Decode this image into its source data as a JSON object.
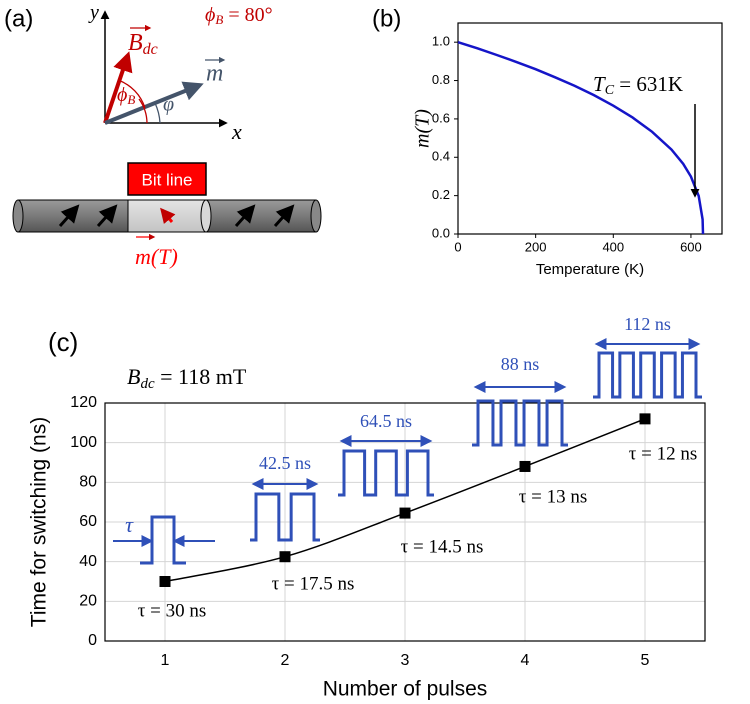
{
  "diagram": {
    "label": "(a)",
    "axis_y": "y",
    "axis_x": "x",
    "field_symbol": "B",
    "field_subscript": "dc",
    "angle_symbol": "ϕ",
    "angle_subscript": "B",
    "angle_value": " = 80°",
    "magnetization_symbol": "m",
    "magnetization_angle": "φ",
    "bit_line": "Bit line",
    "temperature_argument": "(T)"
  },
  "chart_data": [
    {
      "type": "line",
      "label": "(b)",
      "x_label": "Temperature (K)",
      "y_label": "m(T)",
      "x": [
        0,
        50,
        100,
        150,
        200,
        250,
        300,
        350,
        400,
        450,
        500,
        550,
        580,
        600,
        620,
        630,
        631
      ],
      "values": [
        1.0,
        0.968,
        0.933,
        0.897,
        0.859,
        0.817,
        0.773,
        0.724,
        0.669,
        0.607,
        0.533,
        0.44,
        0.366,
        0.3,
        0.198,
        0.076,
        0
      ],
      "color": "#1515c8",
      "xlim": [
        0,
        680
      ],
      "xticks": [
        0,
        200,
        400,
        600
      ],
      "ylim": [
        0,
        1.1
      ],
      "yticks": [
        {
          "value": 0,
          "label": "0.0"
        },
        0.2,
        0.4,
        0.6,
        0.8,
        {
          "value": 1,
          "label": "1.0"
        }
      ],
      "annotation": {
        "symbol": "T",
        "subscript": "C",
        "text": " = 631K"
      }
    },
    {
      "type": "line",
      "label": "(c)",
      "subtitle": {
        "symbol": "B",
        "subscript": "dc",
        "text": " = 118 mT"
      },
      "x_label": "Number of pulses",
      "y_label": "Time for switching (ns)",
      "x": [
        1,
        2,
        3,
        4,
        5
      ],
      "values": [
        30,
        42.5,
        64.5,
        88,
        112
      ],
      "color": "#000000",
      "markers": true,
      "xlim": [
        0.5,
        5.5
      ],
      "xticks": [
        1,
        2,
        3,
        4,
        5
      ],
      "ylim": [
        0,
        120
      ],
      "yticks": [
        0,
        20,
        40,
        60,
        80,
        100,
        120
      ],
      "grid": true,
      "point_labels": [
        "τ = 30 ns",
        "τ = 17.5 ns",
        "τ = 14.5 ns",
        "τ = 13 ns",
        "τ = 12 ns"
      ],
      "pulse_labels": [
        "τ",
        "42.5 ns",
        "64.5 ns",
        "88 ns",
        "112 ns"
      ]
    }
  ]
}
